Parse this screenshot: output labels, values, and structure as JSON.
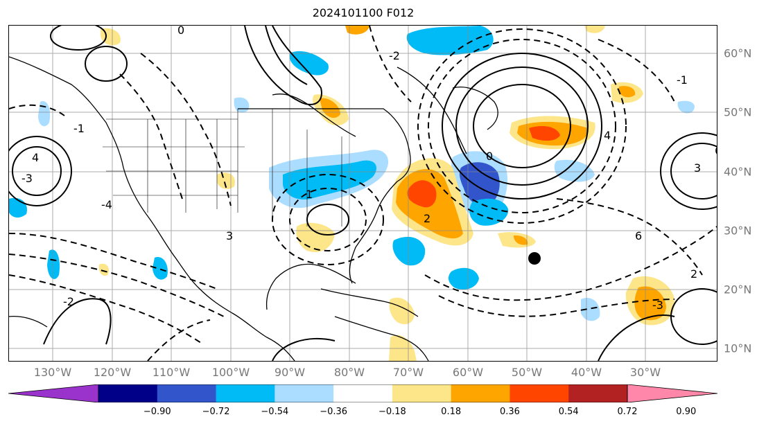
{
  "title": "2024101100 F012",
  "longitude_labels": [
    "130°W",
    "120°W",
    "110°W",
    "100°W",
    "90°W",
    "80°W",
    "70°W",
    "60°W",
    "50°W",
    "40°W",
    "30°W"
  ],
  "latitude_labels": [
    "60°N",
    "50°N",
    "40°N",
    "30°N",
    "20°N",
    "10°N"
  ],
  "colorbar": {
    "ticks": [
      "−0.90",
      "−0.72",
      "−0.54",
      "−0.36",
      "−0.18",
      "0.18",
      "0.36",
      "0.54",
      "0.72",
      "0.90"
    ],
    "colors": [
      "#9933cc",
      "#000088",
      "#3355cc",
      "#00bbf5",
      "#aaddff",
      "#ffffff",
      "#fde68a",
      "#ffa500",
      "#ff4500",
      "#b22222",
      "#ff88aa"
    ]
  },
  "shading_colors": {
    "light_blue": "#aaddff",
    "cyan": "#00bbf5",
    "blue": "#3355cc",
    "yellow": "#fde68a",
    "orange": "#ffa500",
    "red_orange": "#ff4500"
  },
  "contour_labels": [
    "0",
    "-1",
    "-2",
    "-3",
    "4",
    "6",
    "3",
    "2",
    "1",
    "-4"
  ],
  "marker": "filled-circle"
}
